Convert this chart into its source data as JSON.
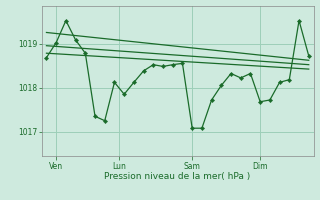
{
  "background_color": "#ceeade",
  "plot_bg_color": "#ceeade",
  "grid_color": "#9dcfb8",
  "line_color": "#1a6b2a",
  "marker_color": "#1a6b2a",
  "xlabel": "Pression niveau de la mer( hPa )",
  "yticks": [
    1017,
    1018,
    1019
  ],
  "ylim": [
    1016.45,
    1019.85
  ],
  "xlim": [
    -0.5,
    27.5
  ],
  "xtick_labels": [
    "Ven",
    "Lun",
    "Sam",
    "Dim"
  ],
  "xtick_pos_final": [
    1,
    7.5,
    15,
    22
  ],
  "trend1_x": [
    0,
    27
  ],
  "trend1_y": [
    1019.25,
    1018.62
  ],
  "trend2_x": [
    0,
    27
  ],
  "trend2_y": [
    1018.95,
    1018.52
  ],
  "trend3_x": [
    0,
    27
  ],
  "trend3_y": [
    1018.78,
    1018.42
  ],
  "series_x": [
    0,
    1,
    2,
    3,
    4,
    5,
    6,
    7,
    8,
    9,
    10,
    11,
    12,
    13,
    14,
    15,
    16,
    17,
    18,
    19,
    20,
    21,
    22,
    23,
    24,
    25,
    26,
    27
  ],
  "series_y": [
    1018.68,
    1019.02,
    1019.52,
    1019.08,
    1018.78,
    1017.35,
    1017.25,
    1018.12,
    1017.85,
    1018.12,
    1018.38,
    1018.52,
    1018.48,
    1018.52,
    1018.55,
    1017.08,
    1017.08,
    1017.72,
    1018.05,
    1018.32,
    1018.22,
    1018.32,
    1017.68,
    1017.72,
    1018.12,
    1018.18,
    1019.52,
    1018.72
  ]
}
